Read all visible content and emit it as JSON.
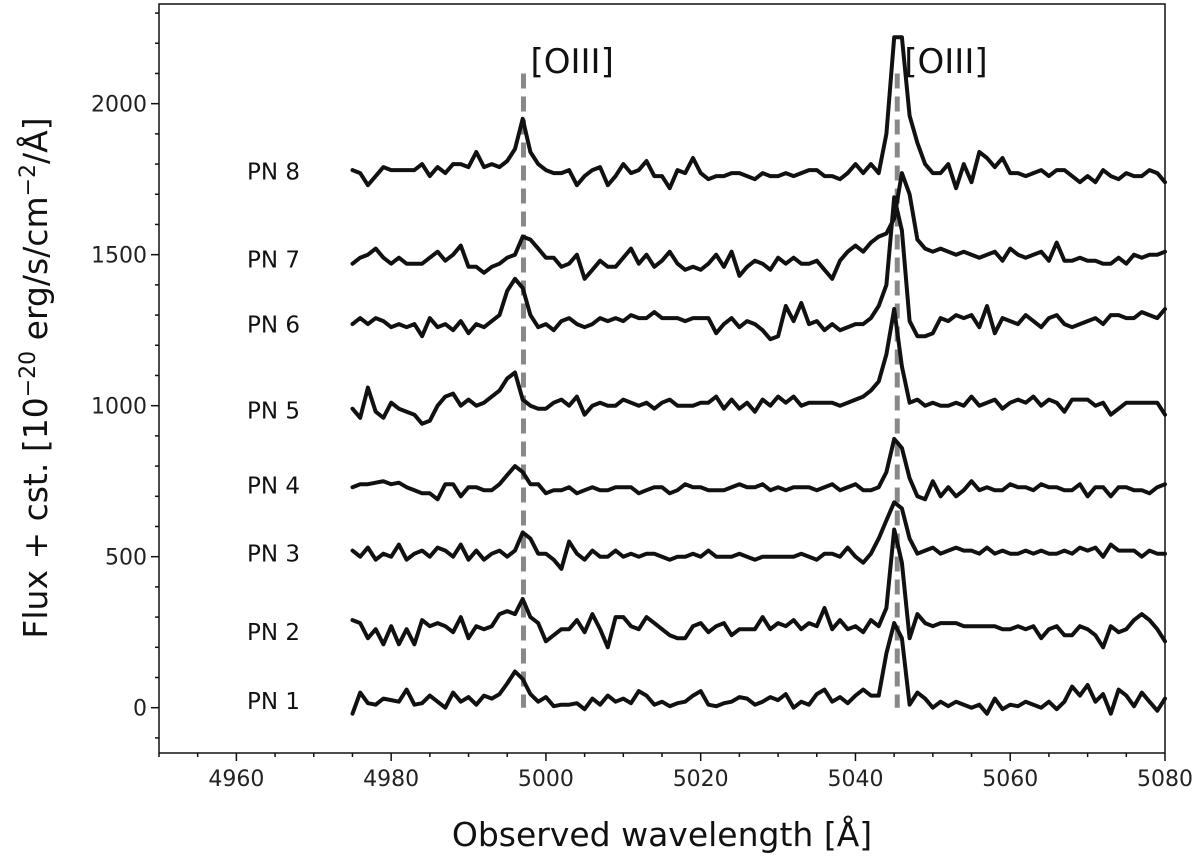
{
  "chart_data": {
    "type": "line",
    "title": "",
    "xlabel": "Observed wavelength [Å]",
    "ylabel": "Flux + cst. [10",
    "ylabel_sup": "−20",
    "ylabel_mid": " erg/s/cm",
    "ylabel_sup2": "−2",
    "ylabel_end": "/Å]",
    "xlim": [
      4950,
      5080
    ],
    "ylim": [
      -150,
      2330
    ],
    "xticks": [
      "4960",
      "4980",
      "5000",
      "5020",
      "5040",
      "5060",
      "5080"
    ],
    "yticks": [
      "0",
      "500",
      "1000",
      "1500",
      "2000"
    ],
    "grid": false,
    "legend": "none",
    "line_color": "#111111",
    "marker_line_color": "#888888",
    "reference_lines": [
      {
        "x": 4997.1,
        "label": "[OIII]"
      },
      {
        "x": 5045.4,
        "label": "[OIII]"
      }
    ],
    "x": [
      4975,
      4976,
      4977,
      4978,
      4979,
      4980,
      4981,
      4982,
      4983,
      4984,
      4985,
      4986,
      4987,
      4988,
      4989,
      4990,
      4991,
      4992,
      4993,
      4994,
      4995,
      4996,
      4997,
      4998,
      4999,
      5000,
      5001,
      5002,
      5003,
      5004,
      5005,
      5006,
      5007,
      5008,
      5009,
      5010,
      5011,
      5012,
      5013,
      5014,
      5015,
      5016,
      5017,
      5018,
      5019,
      5020,
      5021,
      5022,
      5023,
      5024,
      5025,
      5026,
      5027,
      5028,
      5029,
      5030,
      5031,
      5032,
      5033,
      5034,
      5035,
      5036,
      5037,
      5038,
      5039,
      5040,
      5041,
      5042,
      5043,
      5044,
      5045,
      5046,
      5047,
      5048,
      5049,
      5050,
      5051,
      5052,
      5053,
      5054,
      5055,
      5056,
      5057,
      5058,
      5059,
      5060,
      5061,
      5062,
      5063,
      5064,
      5065,
      5066,
      5067,
      5068,
      5069,
      5070,
      5071,
      5072,
      5073,
      5074,
      5075,
      5076,
      5077,
      5078,
      5079,
      5080
    ],
    "series": [
      {
        "name": "PN 1",
        "values": [
          -20,
          50,
          15,
          10,
          30,
          25,
          20,
          60,
          10,
          15,
          40,
          20,
          0,
          50,
          20,
          35,
          10,
          40,
          30,
          45,
          80,
          120,
          95,
          45,
          20,
          35,
          5,
          10,
          10,
          15,
          -5,
          30,
          10,
          40,
          20,
          30,
          15,
          55,
          40,
          10,
          20,
          5,
          15,
          20,
          40,
          55,
          10,
          5,
          15,
          20,
          35,
          30,
          10,
          20,
          35,
          25,
          45,
          0,
          20,
          10,
          45,
          60,
          20,
          35,
          15,
          40,
          60,
          40,
          40,
          180,
          280,
          230,
          10,
          50,
          30,
          0,
          20,
          5,
          20,
          10,
          0,
          10,
          -20,
          30,
          -5,
          10,
          5,
          20,
          10,
          0,
          20,
          -5,
          20,
          70,
          40,
          75,
          20,
          45,
          -20,
          60,
          40,
          5,
          50,
          20,
          -10,
          30
        ]
      },
      {
        "name": "PN 2",
        "values": [
          290,
          280,
          230,
          260,
          210,
          270,
          210,
          260,
          210,
          290,
          270,
          280,
          270,
          250,
          300,
          230,
          270,
          260,
          270,
          310,
          320,
          310,
          360,
          300,
          280,
          220,
          240,
          260,
          260,
          290,
          250,
          310,
          260,
          200,
          300,
          300,
          270,
          260,
          300,
          280,
          260,
          240,
          230,
          230,
          270,
          280,
          250,
          270,
          280,
          240,
          260,
          260,
          260,
          300,
          260,
          280,
          270,
          290,
          260,
          280,
          270,
          330,
          260,
          290,
          260,
          270,
          250,
          290,
          270,
          330,
          590,
          480,
          230,
          310,
          280,
          270,
          280,
          280,
          280,
          270,
          270,
          270,
          270,
          270,
          260,
          260,
          270,
          260,
          270,
          230,
          260,
          270,
          240,
          240,
          270,
          260,
          240,
          200,
          270,
          250,
          260,
          290,
          310,
          290,
          260,
          220
        ]
      },
      {
        "name": "PN 3",
        "values": [
          520,
          500,
          530,
          490,
          510,
          500,
          540,
          490,
          510,
          520,
          500,
          530,
          520,
          500,
          540,
          490,
          520,
          490,
          510,
          520,
          500,
          520,
          580,
          560,
          510,
          510,
          490,
          460,
          550,
          510,
          490,
          520,
          500,
          500,
          520,
          500,
          510,
          500,
          510,
          510,
          500,
          490,
          500,
          500,
          510,
          500,
          520,
          500,
          500,
          500,
          510,
          500,
          490,
          500,
          500,
          500,
          500,
          500,
          510,
          500,
          490,
          510,
          510,
          500,
          530,
          500,
          480,
          510,
          560,
          620,
          680,
          660,
          560,
          510,
          520,
          530,
          510,
          520,
          530,
          520,
          520,
          510,
          530,
          510,
          520,
          510,
          510,
          520,
          510,
          520,
          510,
          510,
          520,
          510,
          530,
          520,
          530,
          500,
          540,
          520,
          520,
          520,
          500,
          520,
          510,
          510
        ]
      },
      {
        "name": "PN 4",
        "values": [
          730,
          740,
          740,
          745,
          750,
          740,
          745,
          730,
          720,
          710,
          710,
          690,
          740,
          740,
          700,
          730,
          730,
          720,
          720,
          740,
          770,
          800,
          780,
          740,
          740,
          710,
          720,
          720,
          730,
          710,
          720,
          730,
          720,
          720,
          730,
          730,
          730,
          710,
          720,
          730,
          730,
          710,
          720,
          740,
          730,
          730,
          720,
          720,
          720,
          730,
          740,
          730,
          730,
          740,
          720,
          730,
          720,
          730,
          730,
          730,
          720,
          730,
          740,
          720,
          730,
          740,
          720,
          720,
          730,
          780,
          890,
          860,
          760,
          700,
          690,
          750,
          700,
          730,
          700,
          720,
          750,
          720,
          730,
          720,
          720,
          740,
          730,
          730,
          720,
          740,
          730,
          730,
          720,
          720,
          740,
          700,
          730,
          730,
          700,
          730,
          730,
          720,
          720,
          710,
          730,
          740
        ]
      },
      {
        "name": "PN 5",
        "values": [
          990,
          960,
          1060,
          980,
          960,
          1010,
          990,
          980,
          970,
          940,
          950,
          1000,
          1030,
          1040,
          1000,
          1020,
          1000,
          1010,
          1030,
          1050,
          1090,
          1110,
          1020,
          1000,
          990,
          990,
          1010,
          1020,
          1000,
          1030,
          970,
          1000,
          1010,
          1000,
          1000,
          1020,
          1010,
          1000,
          1010,
          990,
          1010,
          1020,
          1000,
          1000,
          1000,
          1010,
          1010,
          1030,
          990,
          1020,
          990,
          1010,
          980,
          1020,
          1000,
          1030,
          1010,
          1030,
          1000,
          1010,
          1010,
          1010,
          1010,
          1000,
          1010,
          1020,
          1030,
          1050,
          1080,
          1170,
          1320,
          1130,
          1010,
          1020,
          1000,
          1010,
          1000,
          1000,
          1010,
          1000,
          1030,
          1000,
          1010,
          1020,
          990,
          1010,
          1020,
          1010,
          1030,
          1000,
          1020,
          1010,
          980,
          1020,
          1020,
          1020,
          1000,
          1010,
          970,
          990,
          1010,
          1010,
          1010,
          1010,
          1010,
          970
        ]
      },
      {
        "name": "PN 6",
        "values": [
          1270,
          1290,
          1270,
          1290,
          1280,
          1260,
          1270,
          1260,
          1270,
          1230,
          1290,
          1260,
          1270,
          1250,
          1280,
          1240,
          1270,
          1260,
          1280,
          1300,
          1380,
          1420,
          1390,
          1300,
          1260,
          1270,
          1250,
          1280,
          1290,
          1270,
          1260,
          1270,
          1290,
          1280,
          1290,
          1280,
          1300,
          1290,
          1290,
          1310,
          1290,
          1290,
          1290,
          1280,
          1290,
          1290,
          1290,
          1240,
          1270,
          1290,
          1260,
          1280,
          1270,
          1250,
          1220,
          1230,
          1330,
          1280,
          1340,
          1270,
          1280,
          1250,
          1270,
          1250,
          1260,
          1270,
          1270,
          1290,
          1330,
          1400,
          1690,
          1580,
          1280,
          1230,
          1230,
          1240,
          1290,
          1280,
          1300,
          1290,
          1300,
          1260,
          1330,
          1240,
          1290,
          1280,
          1270,
          1300,
          1280,
          1260,
          1290,
          1300,
          1270,
          1260,
          1270,
          1280,
          1290,
          1270,
          1300,
          1300,
          1290,
          1290,
          1310,
          1300,
          1290,
          1320
        ]
      },
      {
        "name": "PN 7",
        "values": [
          1470,
          1490,
          1500,
          1520,
          1490,
          1470,
          1490,
          1470,
          1470,
          1470,
          1490,
          1510,
          1480,
          1500,
          1530,
          1460,
          1460,
          1440,
          1460,
          1470,
          1490,
          1500,
          1560,
          1550,
          1520,
          1490,
          1490,
          1460,
          1470,
          1500,
          1420,
          1450,
          1480,
          1460,
          1460,
          1490,
          1520,
          1470,
          1500,
          1460,
          1480,
          1510,
          1470,
          1450,
          1460,
          1450,
          1470,
          1500,
          1460,
          1510,
          1430,
          1460,
          1480,
          1470,
          1450,
          1490,
          1470,
          1490,
          1470,
          1470,
          1480,
          1450,
          1420,
          1480,
          1510,
          1530,
          1510,
          1540,
          1560,
          1570,
          1620,
          1770,
          1700,
          1550,
          1520,
          1510,
          1520,
          1510,
          1500,
          1510,
          1500,
          1490,
          1500,
          1510,
          1480,
          1520,
          1500,
          1490,
          1500,
          1510,
          1480,
          1540,
          1480,
          1480,
          1490,
          1480,
          1480,
          1470,
          1470,
          1490,
          1470,
          1500,
          1490,
          1500,
          1500,
          1510
        ]
      },
      {
        "name": "PN 8",
        "values": [
          1780,
          1770,
          1730,
          1760,
          1790,
          1780,
          1780,
          1780,
          1780,
          1800,
          1760,
          1790,
          1770,
          1800,
          1800,
          1790,
          1840,
          1790,
          1800,
          1790,
          1810,
          1850,
          1950,
          1840,
          1800,
          1780,
          1770,
          1770,
          1780,
          1730,
          1760,
          1780,
          1790,
          1730,
          1760,
          1800,
          1770,
          1780,
          1810,
          1760,
          1760,
          1720,
          1780,
          1770,
          1820,
          1770,
          1750,
          1760,
          1760,
          1770,
          1770,
          1760,
          1750,
          1770,
          1760,
          1760,
          1770,
          1760,
          1770,
          1780,
          1780,
          1760,
          1760,
          1750,
          1770,
          1800,
          1770,
          1800,
          1770,
          1900,
          2220,
          2220,
          1960,
          1870,
          1800,
          1770,
          1770,
          1800,
          1720,
          1800,
          1740,
          1840,
          1820,
          1790,
          1820,
          1770,
          1770,
          1760,
          1770,
          1780,
          1760,
          1780,
          1780,
          1760,
          1740,
          1760,
          1740,
          1780,
          1760,
          1750,
          1770,
          1760,
          1760,
          1780,
          1770,
          1740
        ]
      }
    ]
  }
}
